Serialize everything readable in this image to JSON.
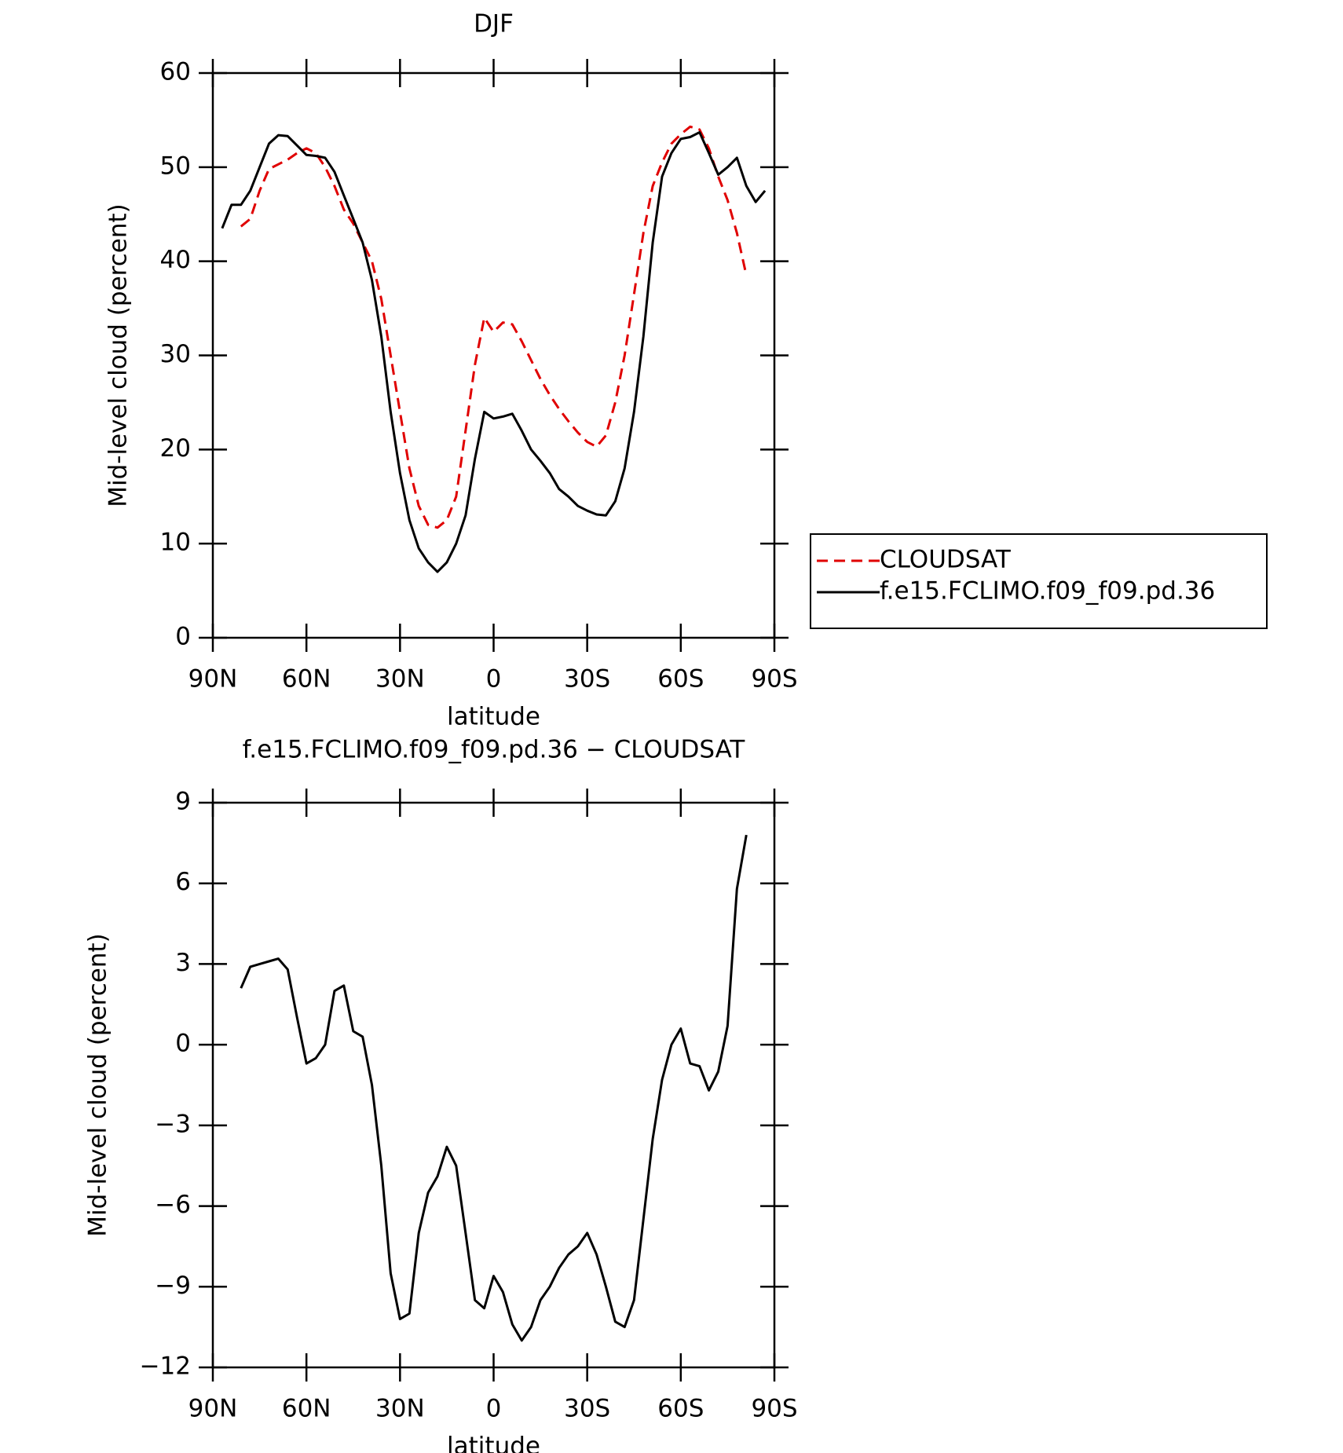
{
  "chart_data": [
    {
      "type": "line",
      "title": "DJF",
      "xlabel": "latitude",
      "ylabel": "Mid-level cloud (percent)",
      "x": [
        87,
        84,
        81,
        78,
        75,
        72,
        69,
        66,
        63,
        60,
        57,
        54,
        51,
        48,
        45,
        42,
        39,
        36,
        33,
        30,
        27,
        24,
        21,
        18,
        15,
        12,
        9,
        6,
        3,
        0,
        -3,
        -6,
        -9,
        -12,
        -15,
        -18,
        -21,
        -24,
        -27,
        -30,
        -33,
        -36,
        -39,
        -42,
        -45,
        -48,
        -51,
        -54,
        -57,
        -60,
        -63,
        -66,
        -69,
        -72,
        -75,
        -78,
        -81,
        -84,
        -87
      ],
      "xlim": [
        90,
        -90
      ],
      "xticks": [
        {
          "value": 90,
          "label": "90N"
        },
        {
          "value": 60,
          "label": "60N"
        },
        {
          "value": 30,
          "label": "30N"
        },
        0,
        {
          "value": -30,
          "label": "30S"
        },
        {
          "value": -60,
          "label": "60S"
        },
        {
          "value": -90,
          "label": "90S"
        }
      ],
      "ylim": [
        0,
        60
      ],
      "yticks": [
        0,
        10,
        20,
        30,
        40,
        50,
        60
      ],
      "legend": "right",
      "series": [
        {
          "name": "CLOUDSAT",
          "color": "#e00000",
          "dash": true,
          "values": [
            null,
            null,
            43.7,
            44.5,
            47.5,
            49.8,
            50.3,
            50.8,
            51.5,
            52,
            51.5,
            50,
            48,
            45.5,
            44,
            42,
            40,
            36,
            30,
            24,
            18,
            14,
            12,
            11.7,
            12.5,
            15,
            22,
            29,
            34,
            32.5,
            33.5,
            33.3,
            31.5,
            29.5,
            27.5,
            25.8,
            24.3,
            23,
            21.8,
            20.8,
            20.3,
            21.5,
            25,
            30,
            36.5,
            43,
            48,
            50.5,
            52.5,
            53.5,
            54.3,
            54,
            52,
            49,
            46.5,
            43,
            38.5,
            null,
            null
          ]
        },
        {
          "name": "f.e15.FCLIMO.f09_f09.pd.36",
          "color": "#000000",
          "dash": false,
          "values": [
            43.5,
            46,
            46,
            47.5,
            50,
            52.5,
            53.4,
            53.3,
            52.3,
            51.3,
            51.2,
            51,
            49.5,
            47,
            44.5,
            42,
            38,
            32,
            24,
            17.5,
            12.5,
            9.5,
            8,
            7,
            8,
            10,
            13,
            19,
            24,
            23.3,
            23.5,
            23.8,
            22,
            20,
            18.8,
            17.5,
            15.8,
            15,
            14,
            13.5,
            13.1,
            13,
            14.5,
            18,
            24,
            32,
            42,
            49,
            51.5,
            53,
            53.2,
            53.7,
            51.5,
            49.2,
            50,
            51,
            48,
            46.3,
            47.5
          ]
        }
      ]
    },
    {
      "type": "line",
      "title": "f.e15.FCLIMO.f09_f09.pd.36 − CLOUDSAT",
      "xlabel": "latitude",
      "ylabel": "Mid-level cloud (percent)",
      "x": [
        81,
        78,
        75,
        72,
        69,
        66,
        63,
        60,
        57,
        54,
        51,
        48,
        45,
        42,
        39,
        36,
        33,
        30,
        27,
        24,
        21,
        18,
        15,
        12,
        9,
        6,
        3,
        0,
        -3,
        -6,
        -9,
        -12,
        -15,
        -18,
        -21,
        -24,
        -27,
        -30,
        -33,
        -36,
        -39,
        -42,
        -45,
        -48,
        -51,
        -54,
        -57,
        -60,
        -63,
        -66,
        -69,
        -72,
        -75,
        -78,
        -81
      ],
      "xlim": [
        90,
        -90
      ],
      "xticks": [
        {
          "value": 90,
          "label": "90N"
        },
        {
          "value": 60,
          "label": "60N"
        },
        {
          "value": 30,
          "label": "30N"
        },
        0,
        {
          "value": -30,
          "label": "30S"
        },
        {
          "value": -60,
          "label": "60S"
        },
        {
          "value": -90,
          "label": "90S"
        }
      ],
      "ylim": [
        -12,
        9
      ],
      "yticks": [
        {
          "value": -12,
          "label": "−12"
        },
        {
          "value": -9,
          "label": "−9"
        },
        {
          "value": -6,
          "label": "−6"
        },
        {
          "value": -3,
          "label": "−3"
        },
        0,
        3,
        6,
        9
      ],
      "series": [
        {
          "color": "#000000",
          "dash": false,
          "values": [
            2.1,
            2.9,
            3.0,
            3.1,
            3.2,
            2.8,
            1.0,
            -0.7,
            -0.5,
            0,
            2.0,
            2.2,
            0.5,
            0.3,
            -1.5,
            -4.5,
            -8.5,
            -10.2,
            -10.0,
            -7,
            -5.5,
            -4.9,
            -3.8,
            -4.5,
            -7,
            -9.5,
            -9.8,
            -8.6,
            -9.2,
            -10.4,
            -11,
            -10.5,
            -9.5,
            -9,
            -8.3,
            -7.8,
            -7.5,
            -7,
            -7.8,
            -9,
            -10.3,
            -10.5,
            -9.5,
            -6.5,
            -3.5,
            -1.3,
            0,
            0.6,
            -0.7,
            -0.8,
            -1.7,
            -1.0,
            0.7,
            5.8,
            7.8
          ]
        }
      ]
    }
  ]
}
